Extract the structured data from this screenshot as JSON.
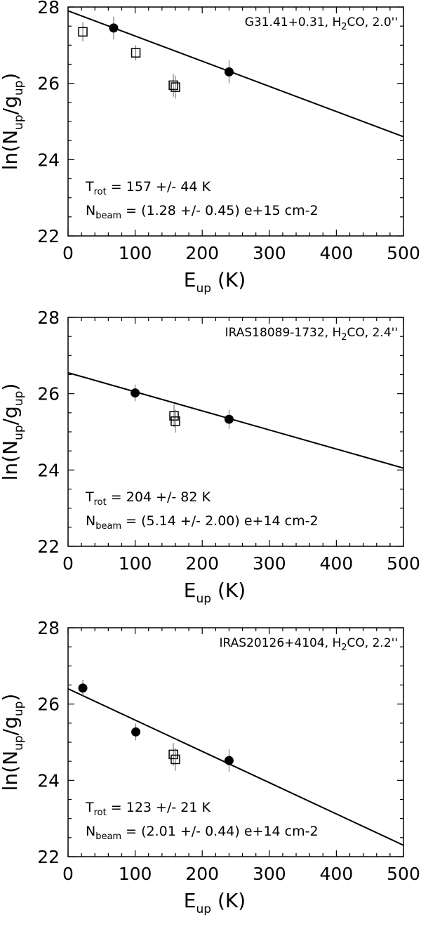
{
  "chart_data": [
    {
      "type": "scatter",
      "title": "",
      "annotation": {
        "source": "G31.41+0.31",
        "molecule_pre": "H",
        "molecule_sub": "2",
        "molecule_post": "CO",
        "beam": "2.0''"
      },
      "fit_text": {
        "trot_label": "T",
        "trot_sub": "rot",
        "trot_value": "= 157 +/-  44 K",
        "nbeam_label": "N",
        "nbeam_sub": "beam",
        "nbeam_value": "= (1.28 +/- 0.45) e+15 cm-2"
      },
      "xlabel": {
        "main": "E",
        "sub": "up",
        "unit": "(K)"
      },
      "ylabel": {
        "pre": "ln(N",
        "sub1": "up",
        "mid": "/g",
        "sub2": "up",
        "post": ")"
      },
      "xlim": [
        0,
        500
      ],
      "ylim": [
        22,
        28
      ],
      "xticks": [
        "0",
        "100",
        "200",
        "300",
        "400",
        "500"
      ],
      "yticks": [
        "22",
        "24",
        "26",
        "28"
      ],
      "fit_line": {
        "x": [
          0,
          500
        ],
        "y": [
          27.9,
          24.6
        ]
      },
      "series": [
        {
          "marker": "filled-circle",
          "points": [
            {
              "x": 68,
              "y": 27.45,
              "err": 0.3
            },
            {
              "x": 240,
              "y": 26.3,
              "err": 0.3
            }
          ]
        },
        {
          "marker": "open-square",
          "points": [
            {
              "x": 22,
              "y": 27.35,
              "err": 0.25
            },
            {
              "x": 101,
              "y": 26.8,
              "err": 0.2
            },
            {
              "x": 157,
              "y": 25.95,
              "err": 0.3
            },
            {
              "x": 160,
              "y": 25.9,
              "err": 0.3
            }
          ]
        }
      ]
    },
    {
      "type": "scatter",
      "title": "",
      "annotation": {
        "source": "IRAS18089-1732",
        "molecule_pre": "H",
        "molecule_sub": "2",
        "molecule_post": "CO",
        "beam": "2.4''"
      },
      "fit_text": {
        "trot_label": "T",
        "trot_sub": "rot",
        "trot_value": "= 204 +/- 82 K",
        "nbeam_label": "N",
        "nbeam_sub": "beam",
        "nbeam_value": "= (5.14 +/- 2.00) e+14 cm-2"
      },
      "xlabel": {
        "main": "E",
        "sub": "up",
        "unit": "(K)"
      },
      "ylabel": {
        "pre": "ln(N",
        "sub1": "up",
        "mid": "/g",
        "sub2": "up",
        "post": ")"
      },
      "xlim": [
        0,
        500
      ],
      "ylim": [
        22,
        28
      ],
      "xticks": [
        "0",
        "100",
        "200",
        "300",
        "400",
        "500"
      ],
      "yticks": [
        "22",
        "24",
        "26",
        "28"
      ],
      "fit_line": {
        "x": [
          0,
          500
        ],
        "y": [
          26.55,
          24.05
        ]
      },
      "series": [
        {
          "marker": "filled-circle",
          "points": [
            {
              "x": 100,
              "y": 26.02,
              "err": 0.22
            },
            {
              "x": 240,
              "y": 25.33,
              "err": 0.25
            }
          ]
        },
        {
          "marker": "open-square",
          "points": [
            {
              "x": 158,
              "y": 25.42,
              "err": 0.3
            },
            {
              "x": 160,
              "y": 25.28,
              "err": 0.3
            }
          ]
        }
      ]
    },
    {
      "type": "scatter",
      "title": "",
      "annotation": {
        "source": "IRAS20126+4104",
        "molecule_pre": "H",
        "molecule_sub": "2",
        "molecule_post": "CO",
        "beam": "2.2''"
      },
      "fit_text": {
        "trot_label": "T",
        "trot_sub": "rot",
        "trot_value": "= 123 +/- 21 K",
        "nbeam_label": "N",
        "nbeam_sub": "beam",
        "nbeam_value": "= (2.01 +/- 0.44) e+14 cm-2"
      },
      "xlabel": {
        "main": "E",
        "sub": "up",
        "unit": "(K)"
      },
      "ylabel": {
        "pre": "ln(N",
        "sub1": "up",
        "mid": "/g",
        "sub2": "up",
        "post": ")"
      },
      "xlim": [
        0,
        500
      ],
      "ylim": [
        22,
        28
      ],
      "xticks": [
        "0",
        "100",
        "200",
        "300",
        "400",
        "500"
      ],
      "yticks": [
        "22",
        "24",
        "26",
        "28"
      ],
      "fit_line": {
        "x": [
          0,
          500
        ],
        "y": [
          26.4,
          22.3
        ]
      },
      "series": [
        {
          "marker": "filled-circle",
          "points": [
            {
              "x": 22,
              "y": 26.42,
              "err": 0.22
            },
            {
              "x": 101,
              "y": 25.27,
              "err": 0.22
            },
            {
              "x": 240,
              "y": 24.52,
              "err": 0.3
            }
          ]
        },
        {
          "marker": "open-square",
          "points": [
            {
              "x": 157,
              "y": 24.68,
              "err": 0.3
            },
            {
              "x": 160,
              "y": 24.55,
              "err": 0.3
            }
          ]
        }
      ]
    }
  ]
}
